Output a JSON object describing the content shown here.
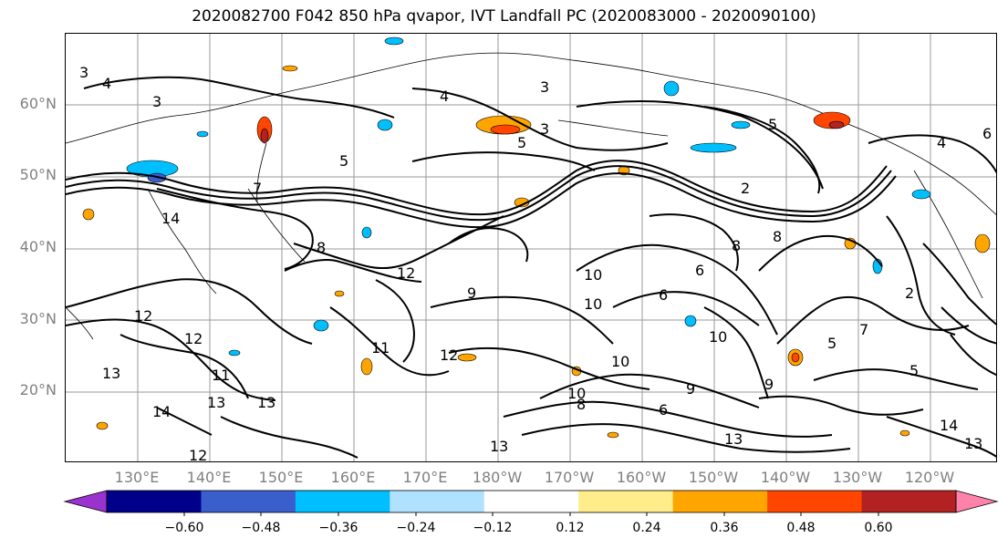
{
  "title": "2020082700 F042 850 hPa qvapor, IVT Landfall PC (2020083000 - 2020090100)",
  "lat_labels": [
    "60°N",
    "50°N",
    "40°N",
    "30°N",
    "20°N"
  ],
  "lon_labels": [
    "130°E",
    "140°E",
    "150°E",
    "160°E",
    "170°E",
    "180°W",
    "170°W",
    "160°W",
    "150°W",
    "140°W",
    "130°W",
    "120°W"
  ],
  "colorbar": {
    "tick_labels": [
      "−0.60",
      "−0.48",
      "−0.36",
      "−0.24",
      "−0.12",
      "0.12",
      "0.24",
      "0.36",
      "0.48",
      "0.60"
    ],
    "colors": [
      "#9a32cd",
      "#00008b",
      "#3a5fcd",
      "#00bfff",
      "#b0e2ff",
      "#ffffff",
      "#ffec8b",
      "#ffa500",
      "#ff4500",
      "#b22222",
      "#ff82ab"
    ]
  },
  "contour_labels": [
    "3",
    "4",
    "3",
    "5",
    "3",
    "5",
    "4",
    "6",
    "5",
    "2",
    "4",
    "7",
    "14",
    "8",
    "12",
    "10",
    "6",
    "8",
    "10",
    "12",
    "12",
    "9",
    "11",
    "13",
    "13",
    "13",
    "14",
    "12",
    "11",
    "12",
    "13",
    "13",
    "14",
    "13",
    "2",
    "6",
    "5",
    "3",
    "10",
    "8",
    "5",
    "9",
    "10",
    "9",
    "7",
    "6",
    "8",
    "10"
  ]
}
